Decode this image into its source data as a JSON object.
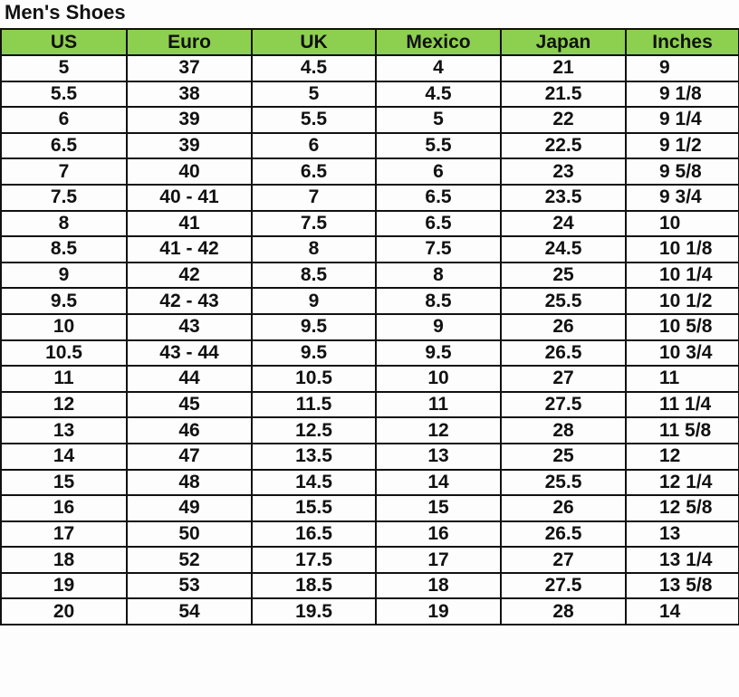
{
  "title": "Men's Shoes",
  "columns": [
    "US",
    "Euro",
    "UK",
    "Mexico",
    "Japan",
    "Inches"
  ],
  "header_color": "#8dcf4f",
  "rows": [
    [
      "5",
      "37",
      "4.5",
      "4",
      "21",
      "9"
    ],
    [
      "5.5",
      "38",
      "5",
      "4.5",
      "21.5",
      "9 1/8"
    ],
    [
      "6",
      "39",
      "5.5",
      "5",
      "22",
      "9 1/4"
    ],
    [
      "6.5",
      "39",
      "6",
      "5.5",
      "22.5",
      "9 1/2"
    ],
    [
      "7",
      "40",
      "6.5",
      "6",
      "23",
      "9 5/8"
    ],
    [
      "7.5",
      "40 - 41",
      "7",
      "6.5",
      "23.5",
      "9 3/4"
    ],
    [
      "8",
      "41",
      "7.5",
      "6.5",
      "24",
      "10"
    ],
    [
      "8.5",
      "41 - 42",
      "8",
      "7.5",
      "24.5",
      "10 1/8"
    ],
    [
      "9",
      "42",
      "8.5",
      "8",
      "25",
      "10 1/4"
    ],
    [
      "9.5",
      "42 - 43",
      "9",
      "8.5",
      "25.5",
      "10 1/2"
    ],
    [
      "10",
      "43",
      "9.5",
      "9",
      "26",
      "10 5/8"
    ],
    [
      "10.5",
      "43 - 44",
      "9.5",
      "9.5",
      "26.5",
      "10 3/4"
    ],
    [
      "11",
      "44",
      "10.5",
      "10",
      "27",
      "11"
    ],
    [
      "12",
      "45",
      "11.5",
      "11",
      "27.5",
      "11 1/4"
    ],
    [
      "13",
      "46",
      "12.5",
      "12",
      "28",
      "11 5/8"
    ],
    [
      "14",
      "47",
      "13.5",
      "13",
      "25",
      "12"
    ],
    [
      "15",
      "48",
      "14.5",
      "14",
      "25.5",
      "12 1/4"
    ],
    [
      "16",
      "49",
      "15.5",
      "15",
      "26",
      "12 5/8"
    ],
    [
      "17",
      "50",
      "16.5",
      "16",
      "26.5",
      "13"
    ],
    [
      "18",
      "52",
      "17.5",
      "17",
      "27",
      "13 1/4"
    ],
    [
      "19",
      "53",
      "18.5",
      "18",
      "27.5",
      "13 5/8"
    ],
    [
      "20",
      "54",
      "19.5",
      "19",
      "28",
      "14"
    ]
  ]
}
